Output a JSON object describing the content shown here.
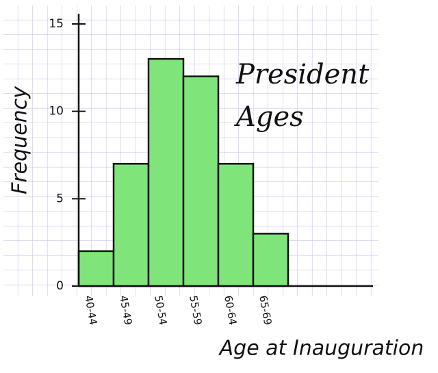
{
  "chart_data": {
    "type": "bar",
    "title": "President Ages",
    "x_label": "Age at Inauguration",
    "y_label": "Frequency",
    "categories": [
      "40-44",
      "45-49",
      "50-54",
      "55-59",
      "60-64",
      "65-69"
    ],
    "values": [
      2,
      7,
      13,
      12,
      7,
      3
    ],
    "color": "#7fe57a",
    "ylim": [
      0,
      15
    ],
    "yticks": [
      0,
      5,
      10,
      15
    ]
  }
}
